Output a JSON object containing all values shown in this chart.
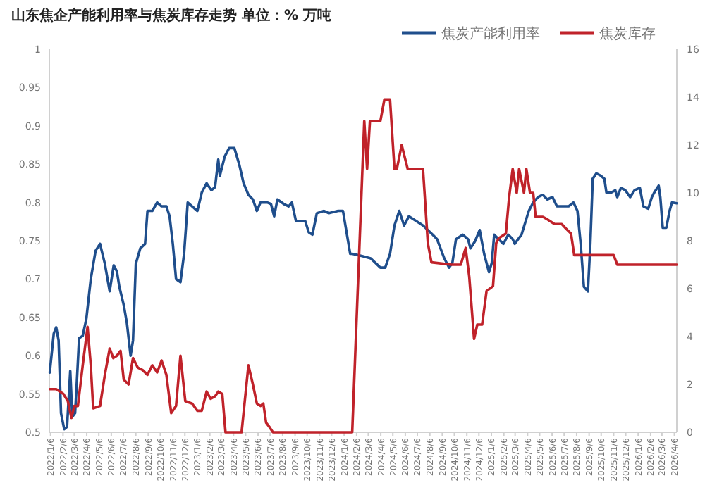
{
  "chart_data": {
    "type": "line",
    "title": "山东焦企产能利用率与焦炭库存走势  单位：% 万吨",
    "legend": "top right",
    "xlim": [
      "2022-01-03",
      "2026-04-12"
    ],
    "xticks": [
      {
        "value": "2022-01-06",
        "label": "2022/1/6"
      },
      {
        "value": "2022-02-06",
        "label": "2022/2/6"
      },
      {
        "value": "2022-03-06",
        "label": "2022/3/6"
      },
      {
        "value": "2022-04-06",
        "label": "2022/4/6"
      },
      {
        "value": "2022-05-06",
        "label": "2022/5/6"
      },
      {
        "value": "2022-06-06",
        "label": "2022/6/6"
      },
      {
        "value": "2022-07-06",
        "label": "2022/7/6"
      },
      {
        "value": "2022-08-06",
        "label": "2022/8/6"
      },
      {
        "value": "2022-09-06",
        "label": "2022/9/6"
      },
      {
        "value": "2022-10-06",
        "label": "2022/10/6"
      },
      {
        "value": "2022-11-06",
        "label": "2022/11/6"
      },
      {
        "value": "2022-12-06",
        "label": "2022/12/6"
      },
      {
        "value": "2023-01-06",
        "label": "2023/1/6"
      },
      {
        "value": "2023-02-06",
        "label": "2023/2/6"
      },
      {
        "value": "2023-03-06",
        "label": "2023/3/6"
      },
      {
        "value": "2023-04-06",
        "label": "2023/4/6"
      },
      {
        "value": "2023-05-06",
        "label": "2023/5/6"
      },
      {
        "value": "2023-06-06",
        "label": "2023/6/6"
      },
      {
        "value": "2023-07-06",
        "label": "2023/7/6"
      },
      {
        "value": "2023-08-06",
        "label": "2023/8/6"
      },
      {
        "value": "2023-09-06",
        "label": "2023/9/6"
      },
      {
        "value": "2023-10-06",
        "label": "2023/10/6"
      },
      {
        "value": "2023-11-06",
        "label": "2023/11/6"
      },
      {
        "value": "2023-12-06",
        "label": "2023/12/6"
      },
      {
        "value": "2024-01-06",
        "label": "2024/1/6"
      },
      {
        "value": "2024-02-06",
        "label": "2024/2/6"
      },
      {
        "value": "2024-03-06",
        "label": "2024/3/6"
      },
      {
        "value": "2024-04-06",
        "label": "2024/4/6"
      },
      {
        "value": "2024-05-06",
        "label": "2024/5/6"
      },
      {
        "value": "2024-06-06",
        "label": "2024/6/6"
      },
      {
        "value": "2024-07-06",
        "label": "2024/7/6"
      },
      {
        "value": "2024-08-06",
        "label": "2024/8/6"
      },
      {
        "value": "2024-09-06",
        "label": "2024/9/6"
      },
      {
        "value": "2024-10-06",
        "label": "2024/10/6"
      },
      {
        "value": "2024-11-06",
        "label": "2024/11/6"
      },
      {
        "value": "2024-12-06",
        "label": "2024/12/6"
      },
      {
        "value": "2025-01-06",
        "label": "2025/1/6"
      },
      {
        "value": "2025-02-06",
        "label": "2025/2/6"
      },
      {
        "value": "2025-03-06",
        "label": "2025/3/6"
      },
      {
        "value": "2025-04-06",
        "label": "2025/4/6"
      },
      {
        "value": "2025-05-06",
        "label": "2025/5/6"
      },
      {
        "value": "2025-06-06",
        "label": "2025/6/6"
      },
      {
        "value": "2025-07-06",
        "label": "2025/7/6"
      },
      {
        "value": "2025-08-06",
        "label": "2025/8/6"
      },
      {
        "value": "2025-09-06",
        "label": "2025/9/6"
      },
      {
        "value": "2025-10-06",
        "label": "2025/10/6"
      },
      {
        "value": "2025-11-06",
        "label": "2025/11/6"
      },
      {
        "value": "2025-12-06",
        "label": "2025/12/6"
      },
      {
        "value": "2026-01-06",
        "label": "2026/1/6"
      },
      {
        "value": "2026-02-06",
        "label": "2026/2/6"
      },
      {
        "value": "2026-03-06",
        "label": "2026/3/6"
      },
      {
        "value": "2026-04-06",
        "label": "2026/4/6"
      }
    ],
    "ylim": [
      0.5,
      1
    ],
    "yticks": [
      0.5,
      0.55,
      0.6,
      0.65,
      0.7,
      0.75,
      0.8,
      0.85,
      0.9,
      0.95,
      1
    ],
    "y2lim": [
      0,
      16
    ],
    "y2ticks": [
      0,
      2,
      4,
      6,
      8,
      10,
      12,
      14,
      16
    ],
    "series": [
      {
        "name": "焦炭产能利用率",
        "color": "#1f4e8c",
        "x": [
          "2022-01-04",
          "2022-01-14",
          "2022-01-20",
          "2022-01-26",
          "2022-02-01",
          "2022-02-09",
          "2022-02-16",
          "2022-02-24",
          "2022-03-01",
          "2022-03-08",
          "2022-03-12",
          "2022-03-18",
          "2022-03-27",
          "2022-04-05",
          "2022-04-16",
          "2022-04-28",
          "2022-05-09",
          "2022-05-21",
          "2022-06-02",
          "2022-06-12",
          "2022-06-20",
          "2022-06-26",
          "2022-07-07",
          "2022-07-15",
          "2022-07-24",
          "2022-07-30",
          "2022-08-06",
          "2022-08-17",
          "2022-08-29",
          "2022-09-04",
          "2022-09-16",
          "2022-09-28",
          "2022-10-09",
          "2022-10-21",
          "2022-10-29",
          "2022-11-06",
          "2022-11-14",
          "2022-11-25",
          "2022-12-04",
          "2022-12-13",
          "2022-12-24",
          "2023-01-06",
          "2023-01-17",
          "2023-01-29",
          "2023-02-10",
          "2023-02-19",
          "2023-02-27",
          "2023-03-03",
          "2023-03-15",
          "2023-03-26",
          "2023-04-08",
          "2023-04-20",
          "2023-05-01",
          "2023-05-13",
          "2023-05-24",
          "2023-06-03",
          "2023-06-12",
          "2023-06-29",
          "2023-07-08",
          "2023-07-16",
          "2023-07-24",
          "2023-08-09",
          "2023-08-21",
          "2023-08-29",
          "2023-09-08",
          "2023-09-19",
          "2023-10-01",
          "2023-10-10",
          "2023-10-19",
          "2023-10-30",
          "2023-11-17",
          "2023-11-29",
          "2023-12-22",
          "2024-01-03",
          "2024-01-21",
          "2024-01-26",
          "2024-02-20",
          "2024-03-12",
          "2024-04-05",
          "2024-04-17",
          "2024-04-29",
          "2024-05-10",
          "2024-05-22",
          "2024-06-03",
          "2024-06-15",
          "2024-07-20",
          "2024-08-13",
          "2024-08-24",
          "2024-09-11",
          "2024-09-23",
          "2024-10-01",
          "2024-10-10",
          "2024-10-27",
          "2024-11-09",
          "2024-11-15",
          "2024-11-26",
          "2024-12-08",
          "2024-12-19",
          "2024-12-31",
          "2025-01-07",
          "2025-01-13",
          "2025-01-24",
          "2025-02-05",
          "2025-02-17",
          "2025-02-28",
          "2025-03-05",
          "2025-03-22",
          "2025-04-09",
          "2025-04-20",
          "2025-05-02",
          "2025-05-14",
          "2025-05-25",
          "2025-06-07",
          "2025-06-18",
          "2025-06-30",
          "2025-07-17",
          "2025-07-29",
          "2025-08-08",
          "2025-08-16",
          "2025-08-24",
          "2025-09-03",
          "2025-09-09",
          "2025-09-15",
          "2025-09-24",
          "2025-10-05",
          "2025-10-14",
          "2025-10-19",
          "2025-10-31",
          "2025-11-10",
          "2025-11-15",
          "2025-11-24",
          "2025-12-05",
          "2025-12-17",
          "2025-12-28",
          "2026-01-10",
          "2026-01-19",
          "2026-01-31",
          "2026-02-09",
          "2026-02-15",
          "2026-02-26",
          "2026-03-02",
          "2026-03-08",
          "2026-03-17",
          "2026-03-25",
          "2026-03-31",
          "2026-04-12"
        ],
        "values": [
          0.578,
          0.629,
          0.637,
          0.62,
          0.525,
          0.504,
          0.507,
          0.58,
          0.52,
          0.525,
          0.562,
          0.623,
          0.626,
          0.648,
          0.7,
          0.737,
          0.746,
          0.72,
          0.684,
          0.718,
          0.71,
          0.69,
          0.666,
          0.642,
          0.6,
          0.62,
          0.72,
          0.74,
          0.746,
          0.789,
          0.789,
          0.8,
          0.795,
          0.795,
          0.782,
          0.746,
          0.7,
          0.696,
          0.733,
          0.8,
          0.795,
          0.789,
          0.813,
          0.825,
          0.816,
          0.82,
          0.856,
          0.835,
          0.86,
          0.871,
          0.871,
          0.85,
          0.825,
          0.81,
          0.804,
          0.789,
          0.8,
          0.8,
          0.798,
          0.782,
          0.804,
          0.798,
          0.795,
          0.8,
          0.776,
          0.776,
          0.776,
          0.761,
          0.758,
          0.786,
          0.789,
          0.786,
          0.789,
          0.789,
          0.733,
          0.733,
          0.73,
          0.727,
          0.715,
          0.715,
          0.733,
          0.77,
          0.789,
          0.77,
          0.782,
          0.77,
          0.758,
          0.752,
          0.727,
          0.715,
          0.721,
          0.752,
          0.758,
          0.752,
          0.74,
          0.749,
          0.764,
          0.733,
          0.709,
          0.721,
          0.758,
          0.752,
          0.746,
          0.758,
          0.752,
          0.746,
          0.758,
          0.789,
          0.8,
          0.807,
          0.81,
          0.804,
          0.807,
          0.795,
          0.795,
          0.795,
          0.8,
          0.789,
          0.746,
          0.69,
          0.684,
          0.746,
          0.831,
          0.838,
          0.835,
          0.831,
          0.813,
          0.813,
          0.816,
          0.807,
          0.819,
          0.816,
          0.807,
          0.816,
          0.819,
          0.795,
          0.792,
          0.807,
          0.813,
          0.822,
          0.807,
          0.767,
          0.767,
          0.789,
          0.8,
          0.799
        ]
      },
      {
        "name": "焦炭库存",
        "color": "#c0222a",
        "axis": "y2",
        "x": [
          "2022-01-04",
          "2022-01-20",
          "2022-02-07",
          "2022-02-18",
          "2022-02-27",
          "2022-03-06",
          "2022-03-15",
          "2022-03-27",
          "2022-04-08",
          "2022-04-16",
          "2022-04-22",
          "2022-05-09",
          "2022-05-21",
          "2022-06-02",
          "2022-06-11",
          "2022-06-20",
          "2022-06-29",
          "2022-07-07",
          "2022-07-19",
          "2022-07-30",
          "2022-08-11",
          "2022-08-23",
          "2022-09-04",
          "2022-09-16",
          "2022-09-28",
          "2022-10-09",
          "2022-10-21",
          "2022-11-02",
          "2022-11-14",
          "2022-11-25",
          "2022-12-07",
          "2022-12-24",
          "2023-01-06",
          "2023-01-17",
          "2023-01-29",
          "2023-02-08",
          "2023-02-19",
          "2023-02-27",
          "2023-03-09",
          "2023-03-17",
          "2023-04-26",
          "2023-05-13",
          "2023-05-24",
          "2023-06-03",
          "2023-06-12",
          "2023-06-19",
          "2023-06-26",
          "2023-07-05",
          "2023-07-13",
          "2024-01-26",
          "2024-02-25",
          "2024-03-03",
          "2024-03-10",
          "2024-04-05",
          "2024-04-15",
          "2024-04-29",
          "2024-05-10",
          "2024-05-16",
          "2024-05-28",
          "2024-06-12",
          "2024-07-20",
          "2024-08-01",
          "2024-08-10",
          "2024-09-29",
          "2024-10-22",
          "2024-11-03",
          "2024-11-12",
          "2024-11-24",
          "2024-12-02",
          "2024-12-14",
          "2024-12-25",
          "2025-01-10",
          "2025-01-18",
          "2025-01-24",
          "2025-02-11",
          "2025-02-19",
          "2025-02-28",
          "2025-03-10",
          "2025-03-16",
          "2025-03-28",
          "2025-04-03",
          "2025-04-12",
          "2025-04-20",
          "2025-04-26",
          "2025-05-14",
          "2025-05-25",
          "2025-06-12",
          "2025-06-30",
          "2025-07-11",
          "2025-07-23",
          "2025-07-31",
          "2025-11-06",
          "2025-11-15",
          "2026-04-12"
        ],
        "values": [
          1.8,
          1.8,
          1.6,
          1.3,
          0.6,
          1.1,
          1.1,
          2.8,
          4.4,
          2.8,
          1.0,
          1.1,
          2.4,
          3.5,
          3.1,
          3.2,
          3.4,
          2.2,
          2.0,
          3.1,
          2.7,
          2.6,
          2.4,
          2.8,
          2.5,
          3.0,
          2.4,
          0.8,
          1.1,
          3.2,
          1.3,
          1.2,
          0.9,
          0.9,
          1.7,
          1.4,
          1.5,
          1.7,
          1.6,
          0,
          0,
          2.8,
          2.0,
          1.2,
          1.1,
          1.2,
          0.4,
          0.2,
          0,
          0,
          13,
          11,
          13,
          13,
          13.9,
          13.9,
          11,
          11,
          12,
          11,
          11,
          7.9,
          7.1,
          7,
          7,
          7.7,
          6.5,
          3.9,
          4.5,
          4.5,
          5.9,
          6.1,
          7.9,
          8.1,
          8.3,
          9.8,
          11,
          10,
          11,
          10,
          11,
          10,
          10,
          9,
          9,
          8.9,
          8.7,
          8.7,
          8.5,
          8.3,
          7.4,
          7.4,
          7,
          7
        ]
      }
    ]
  }
}
